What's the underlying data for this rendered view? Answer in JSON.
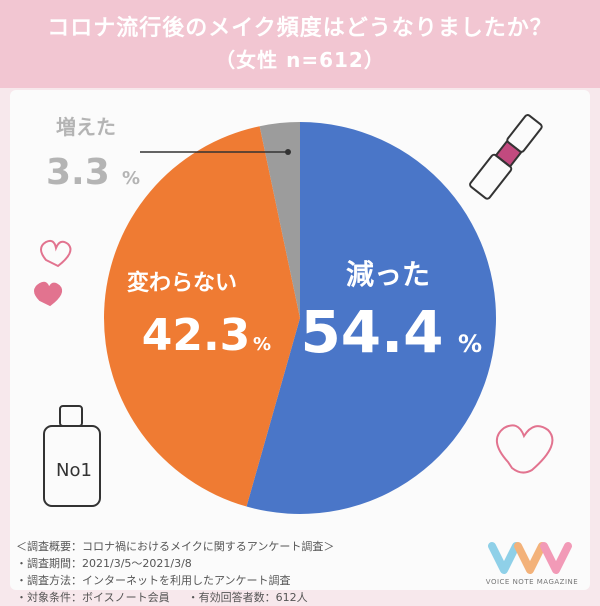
{
  "header": {
    "title": "コロナ流行後のメイク頻度はどうなりましたか？",
    "subtitle": "（女性 n=612）"
  },
  "chart_data": {
    "type": "pie",
    "title": "コロナ流行後のメイク頻度はどうなりましたか？",
    "slices": [
      {
        "label": "減った",
        "value": 54.4,
        "color": "#4a76c8"
      },
      {
        "label": "変わらない",
        "value": 42.3,
        "color": "#ef7b33"
      },
      {
        "label": "増えた",
        "value": 3.3,
        "color": "#9c9c9c"
      }
    ],
    "unit": "%"
  },
  "labels": {
    "decreased": {
      "name": "減った",
      "value": "54.4",
      "unit": "%"
    },
    "unchanged": {
      "name": "変わらない",
      "value": "42.3",
      "unit": "%"
    },
    "increased": {
      "name": "増えた",
      "value": "3.3",
      "unit": "%"
    }
  },
  "notes": {
    "heading": "＜調査概要：コロナ禍におけるメイクに関するアンケート調査＞",
    "period": "・調査期間：2021/3/5〜2021/3/8",
    "method": "・調査方法：インターネットを利用したアンケート調査",
    "target": "・対象条件：ボイスノート会員",
    "responses": "・有効回答者数：612人"
  },
  "brand": {
    "name": "VOICE NOTE MAGAZINE",
    "colors": [
      "#8fd0e8",
      "#f3b27a",
      "#f29ab7"
    ]
  },
  "decorations": [
    "lipstick-icon",
    "heart-icon",
    "perfume-icon"
  ]
}
